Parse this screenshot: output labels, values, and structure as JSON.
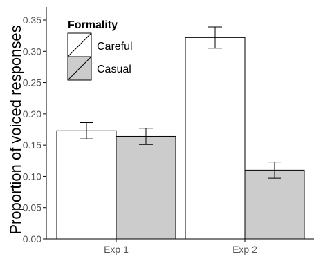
{
  "chart_data": {
    "type": "bar",
    "categories": [
      "Exp 1",
      "Exp 2"
    ],
    "series": [
      {
        "name": "Careful",
        "values": [
          0.173,
          0.322
        ],
        "error": [
          0.013,
          0.017
        ],
        "color": "#ffffff"
      },
      {
        "name": "Casual",
        "values": [
          0.164,
          0.11
        ],
        "error": [
          0.013,
          0.013
        ],
        "color": "#cccccc"
      }
    ],
    "ylabel": "Proportion of voiced responses",
    "xlabel": "",
    "ylim": [
      0,
      0.35
    ],
    "yticks": [
      "0.00",
      "0.05",
      "0.10",
      "0.15",
      "0.20",
      "0.25",
      "0.30",
      "0.35"
    ],
    "legend": {
      "title": "Formality",
      "position": "top-left",
      "entries": [
        "Careful",
        "Casual"
      ]
    },
    "grid": false
  }
}
